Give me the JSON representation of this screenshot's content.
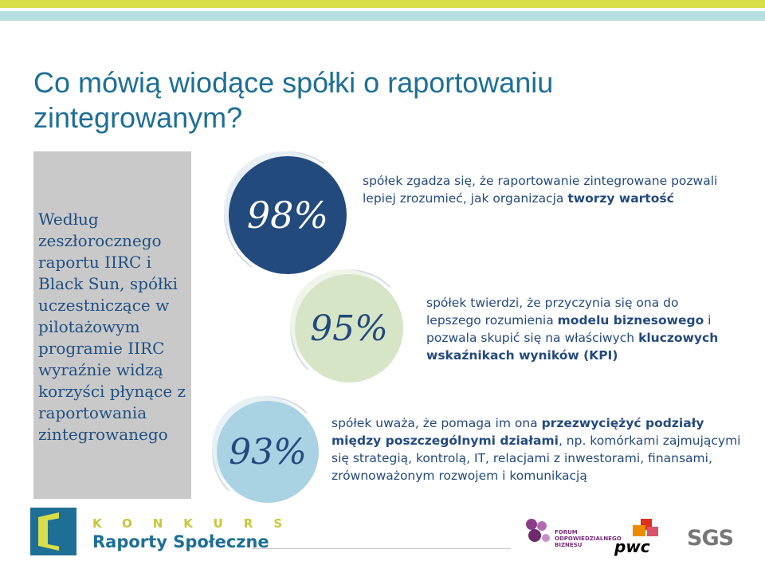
{
  "title": "Co mówią wiodące spółki o raportowaniu zintegrowanym?",
  "sidebar": {
    "text": "Według zeszłorocznego raportu IIRC i Black Sun, spółki uczestniczące w pilotażowym programie IIRC wyraźnie widzą korzyści płynące z raportowania zintegrowanego"
  },
  "stats": [
    {
      "value": "98%",
      "text_plain": "spółek zgadza się, że raportowanie zintegrowane pozwali lepiej zrozumieć, jak organizacja ",
      "text_bold": "tworzy wartość"
    },
    {
      "value": "95%",
      "text_a": "spółek twierdzi, że przyczynia się ona do lepszego rozumienia ",
      "text_b": "modelu biznesowego",
      "text_c": " i pozwala skupić się na właściwych ",
      "text_d": "kluczowych wskaźnikach wyników (KPI)"
    },
    {
      "value": "93%",
      "text_a": "spółek uważa, że pomaga im ona ",
      "text_b": "przezwyciężyć podziały między poszczególnymi działami",
      "text_c": ", np. komórkami zajmującymi się strategią, kontrolą, IT, relacjami z inwestorami, finansami, zrównoważonym rozwojem i komunikacją"
    }
  ],
  "footer": {
    "konkurs": "KONKURS",
    "raporty": "Raporty Społeczne",
    "fob": "FORUM ODPOWIEDZIALNEGO BIZNESU",
    "pwc": "pwc",
    "sgs": "SGS"
  },
  "colors": {
    "navy": "#234a7d",
    "teal": "#1e6f95",
    "lime": "#d7de49",
    "gray": "#c9c9c9"
  }
}
